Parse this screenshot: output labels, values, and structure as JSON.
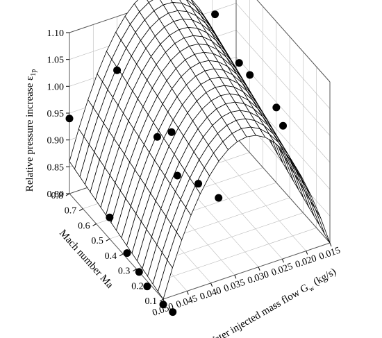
{
  "chart_data": {
    "type": "surface3d",
    "title": "",
    "zlabel": "Relative pressure increase ε",
    "zlabel_sub": "1p",
    "ylabel": "Mach number Ma",
    "xlabel": "Water injected mass flow G",
    "xlabel_sub": "w",
    "xlabel_unit": " (kg/s)",
    "x_ticks": [
      "0.050",
      "0.045",
      "0.040",
      "0.035",
      "0.030",
      "0.025",
      "0.020",
      "0.015"
    ],
    "y_ticks": [
      "0.1",
      "0.2",
      "0.3",
      "0.4",
      "0.5",
      "0.6",
      "0.7",
      "0.8"
    ],
    "z_ticks": [
      "0.80",
      "0.85",
      "0.90",
      "0.95",
      "1.00",
      "1.05",
      "1.10"
    ],
    "xlim": [
      0.015,
      0.05
    ],
    "ylim": [
      0.1,
      0.8
    ],
    "zlim": [
      0.8,
      1.1
    ],
    "grid": true,
    "surface": {
      "formula": "z = 0.80 + 0.25*(4*t*(1-t)) + 0.10*s - 0.04*(1-t)*s",
      "note": "t = (0.050 - G)/0.035, s = (Ma - 0.1)/0.7",
      "mesh_lines": 18
    },
    "points": [
      {
        "x": 0.05,
        "y": 0.8,
        "z": 0.94
      },
      {
        "x": 0.05,
        "y": 0.5,
        "z": 0.84
      },
      {
        "x": 0.05,
        "y": 0.37,
        "z": 0.81
      },
      {
        "x": 0.05,
        "y": 0.28,
        "z": 0.8
      },
      {
        "x": 0.05,
        "y": 0.22,
        "z": 0.79
      },
      {
        "x": 0.05,
        "y": 0.1,
        "z": 0.79
      },
      {
        "x": 0.048,
        "y": 0.1,
        "z": 0.77
      },
      {
        "x": 0.04,
        "y": 0.8,
        "z": 1.0
      },
      {
        "x": 0.04,
        "y": 0.5,
        "z": 0.96
      },
      {
        "x": 0.037,
        "y": 0.5,
        "z": 0.96
      },
      {
        "x": 0.04,
        "y": 0.35,
        "z": 0.93
      },
      {
        "x": 0.037,
        "y": 0.3,
        "z": 0.92
      },
      {
        "x": 0.035,
        "y": 0.22,
        "z": 0.91
      },
      {
        "x": 0.02,
        "y": 0.78,
        "z": 1.05
      },
      {
        "x": 0.02,
        "y": 0.6,
        "z": 1.01
      },
      {
        "x": 0.02,
        "y": 0.52,
        "z": 1.01
      },
      {
        "x": 0.015,
        "y": 0.5,
        "z": 0.94
      },
      {
        "x": 0.015,
        "y": 0.45,
        "z": 0.92
      }
    ]
  }
}
